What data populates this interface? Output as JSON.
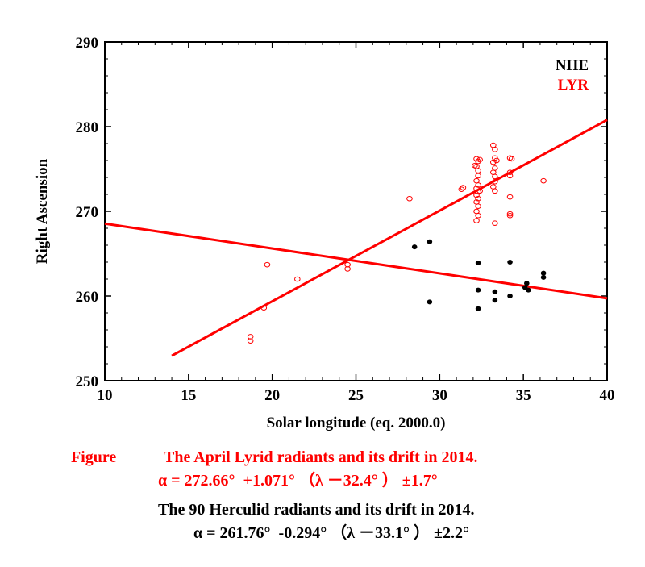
{
  "chart_data": {
    "type": "scatter",
    "xlabel": "Solar longitude (eq. 2000.0)",
    "ylabel": "Right Ascension",
    "xlim": [
      10,
      40
    ],
    "ylim": [
      250,
      290
    ],
    "xticks": [
      10,
      15,
      20,
      25,
      30,
      35,
      40
    ],
    "yticks": [
      250,
      260,
      270,
      280,
      290
    ],
    "grid": false,
    "legend_placement": "top-right",
    "series": [
      {
        "name": "NHE",
        "color": "#000000",
        "marker": "filled-circle",
        "points": [
          [
            28.5,
            265.8
          ],
          [
            29.4,
            266.4
          ],
          [
            29.4,
            259.3
          ],
          [
            32.3,
            263.9
          ],
          [
            32.3,
            260.7
          ],
          [
            32.3,
            258.5
          ],
          [
            33.3,
            260.5
          ],
          [
            33.3,
            259.5
          ],
          [
            34.2,
            264.0
          ],
          [
            34.2,
            260.0
          ],
          [
            35.1,
            261.0
          ],
          [
            35.2,
            261.5
          ],
          [
            35.3,
            260.7
          ],
          [
            36.2,
            262.7
          ],
          [
            36.2,
            262.2
          ]
        ],
        "fit": {
          "x": [
            10,
            40
          ],
          "y": [
            268.55,
            259.73
          ]
        }
      },
      {
        "name": "LYR",
        "color": "#ff0000",
        "marker": "open-circle",
        "points": [
          [
            18.7,
            255.2
          ],
          [
            18.7,
            254.7
          ],
          [
            19.5,
            258.6
          ],
          [
            19.7,
            263.7
          ],
          [
            21.5,
            262.0
          ],
          [
            24.5,
            263.7
          ],
          [
            24.5,
            263.2
          ],
          [
            28.2,
            271.5
          ],
          [
            31.3,
            272.6
          ],
          [
            31.4,
            272.8
          ],
          [
            32.2,
            276.2
          ],
          [
            32.3,
            275.9
          ],
          [
            32.2,
            275.3
          ],
          [
            32.3,
            274.8
          ],
          [
            32.3,
            274.2
          ],
          [
            32.2,
            273.6
          ],
          [
            32.3,
            273.1
          ],
          [
            32.2,
            272.7
          ],
          [
            32.3,
            272.3
          ],
          [
            32.2,
            271.9
          ],
          [
            32.3,
            271.5
          ],
          [
            32.2,
            271.1
          ],
          [
            32.3,
            270.6
          ],
          [
            32.2,
            270.0
          ],
          [
            32.3,
            269.5
          ],
          [
            32.2,
            268.9
          ],
          [
            32.4,
            276.1
          ],
          [
            32.4,
            272.4
          ],
          [
            32.1,
            275.4
          ],
          [
            33.2,
            277.8
          ],
          [
            33.3,
            277.3
          ],
          [
            33.3,
            276.3
          ],
          [
            33.2,
            275.8
          ],
          [
            33.3,
            275.1
          ],
          [
            33.2,
            274.6
          ],
          [
            33.3,
            274.1
          ],
          [
            33.3,
            273.5
          ],
          [
            33.2,
            272.9
          ],
          [
            33.3,
            272.4
          ],
          [
            33.3,
            268.6
          ],
          [
            33.4,
            276.0
          ],
          [
            34.2,
            276.3
          ],
          [
            34.3,
            276.2
          ],
          [
            34.2,
            274.6
          ],
          [
            34.2,
            274.2
          ],
          [
            34.2,
            271.7
          ],
          [
            34.2,
            269.7
          ],
          [
            34.2,
            269.5
          ],
          [
            36.2,
            273.6
          ]
        ],
        "fit": {
          "x": [
            14,
            40
          ],
          "y": [
            252.95,
            280.79
          ]
        }
      }
    ]
  },
  "caption": {
    "figure_label": "Figure",
    "lyr_title": "The April Lyrid radiants and its drift in 2014.",
    "lyr_formula": "α = 272.66°  +1.071° （λ －32.4° ） ±1.7°",
    "nhe_title": "The 90 Herculid radiants and its drift in 2014.",
    "nhe_formula": "α = 261.76°  -0.294° （λ －33.1° ） ±2.2°"
  }
}
